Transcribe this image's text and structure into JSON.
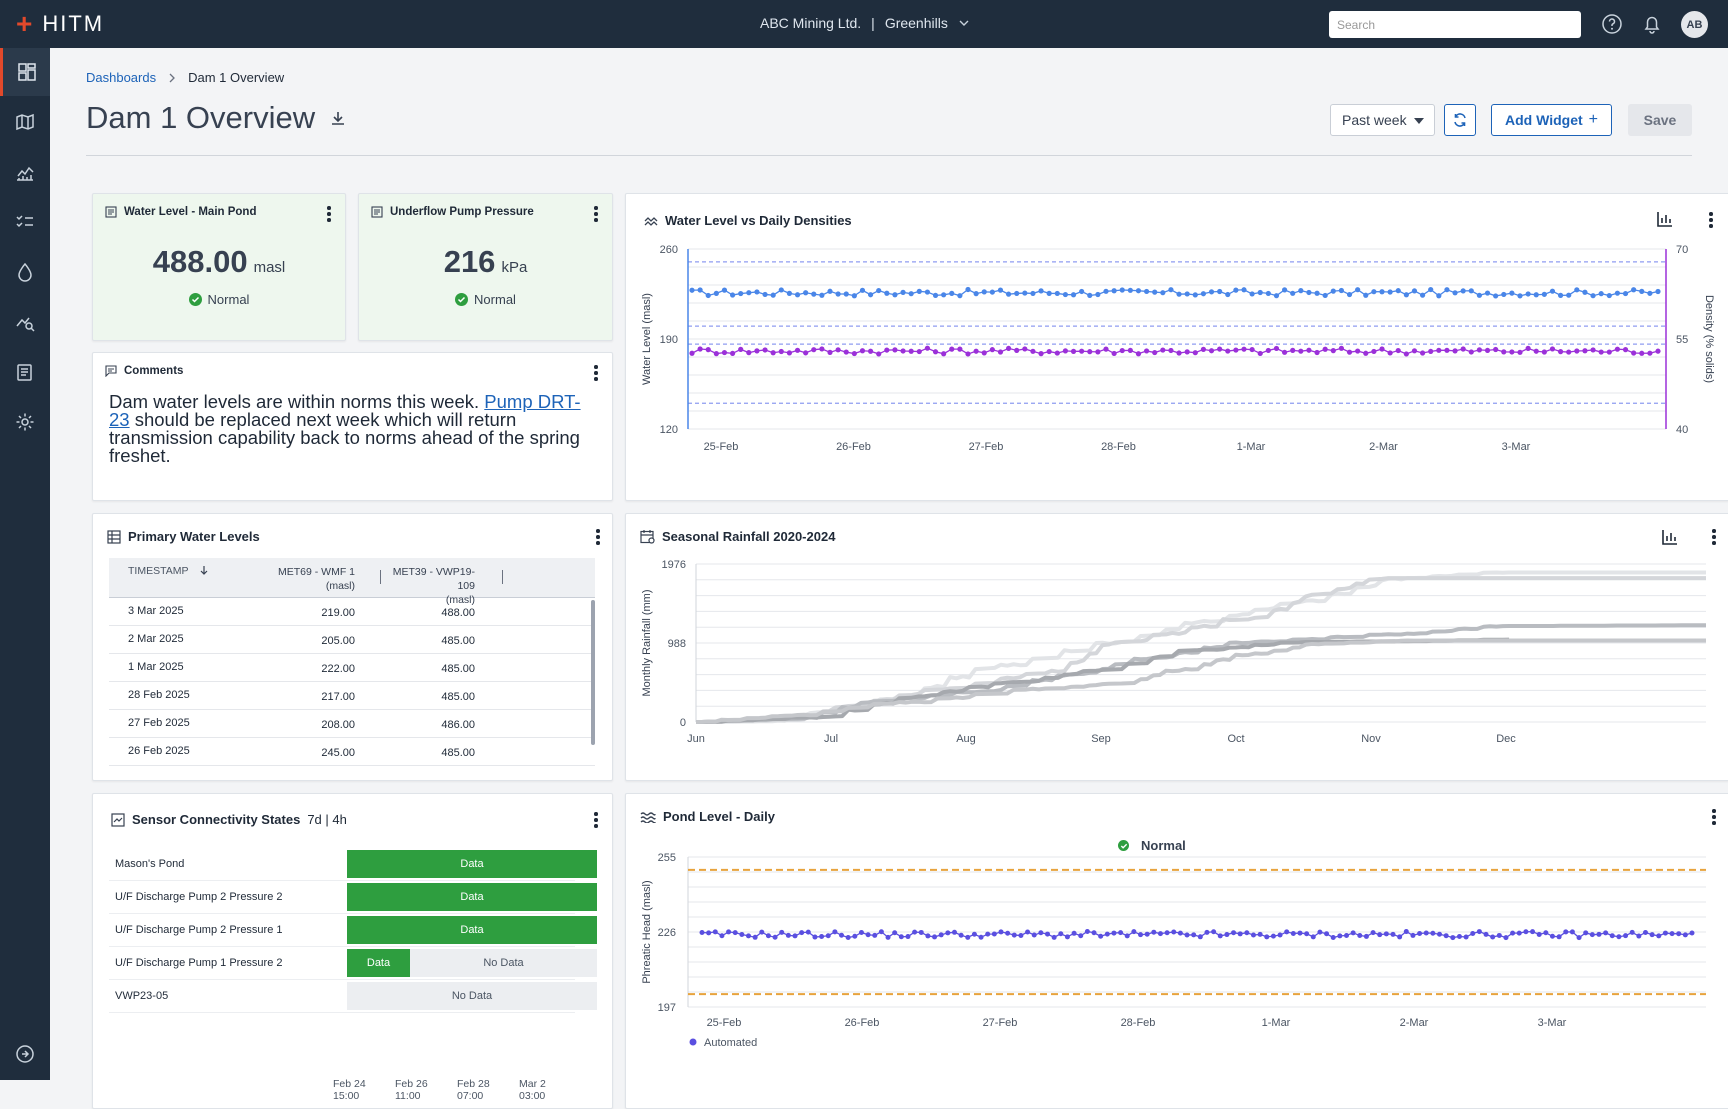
{
  "app": {
    "logo": "HITM",
    "org": "ABC Mining Ltd.",
    "site": "Greenhills",
    "separator": "|"
  },
  "search": {
    "placeholder": "Search"
  },
  "user": {
    "initials": "AB"
  },
  "sidebar": {
    "items": [
      "dashboards",
      "map",
      "analytics",
      "tasks",
      "water",
      "monitoring",
      "reports",
      "settings"
    ],
    "bottom": "expand"
  },
  "breadcrumb": {
    "root": "Dashboards",
    "current": "Dam 1 Overview"
  },
  "page": {
    "title": "Dam 1 Overview"
  },
  "toolbar": {
    "range": "Past week",
    "add_widget": "Add Widget",
    "save": "Save"
  },
  "widgets": {
    "water_level": {
      "title": "Water Level - Main Pond",
      "value": "488.00",
      "unit": "masl",
      "status": "Normal"
    },
    "pump_pressure": {
      "title": "Underflow Pump Pressure",
      "value": "216",
      "unit": "kPa",
      "status": "Normal"
    },
    "comments": {
      "title": "Comments",
      "text_before": "Dam water levels are within norms this week. ",
      "link": "Pump DRT-23",
      "text_after": " should be replaced next week which will return transmission capability back to norms ahead of the spring freshet."
    },
    "primary_levels": {
      "title": "Primary Water Levels",
      "columns": [
        "TIMESTAMP",
        "MET69 - WMF 1\n(masl)",
        "MET39 - VWP19-109\n(masl)"
      ],
      "rows": [
        [
          "3 Mar 2025",
          "219.00",
          "488.00"
        ],
        [
          "2 Mar 2025",
          "205.00",
          "485.00"
        ],
        [
          "1 Mar 2025",
          "222.00",
          "485.00"
        ],
        [
          "28 Feb 2025",
          "217.00",
          "485.00"
        ],
        [
          "27 Feb 2025",
          "208.00",
          "486.00"
        ],
        [
          "26 Feb 2025",
          "245.00",
          "485.00"
        ]
      ]
    },
    "sensor": {
      "title": "Sensor Connectivity States",
      "subtitle": "7d | 4h",
      "rows": [
        {
          "label": "Mason's Pond",
          "data_fraction": 1.0
        },
        {
          "label": "U/F Discharge Pump 2 Pressure 2",
          "data_fraction": 1.0
        },
        {
          "label": "U/F Discharge Pump 2 Pressure 1",
          "data_fraction": 1.0
        },
        {
          "label": "U/F Discharge Pump 1 Pressure 2",
          "data_fraction": 0.25
        },
        {
          "label": "VWP23-05",
          "data_fraction": 0.0
        }
      ],
      "data_label": "Data",
      "nodata_label": "No Data",
      "x_ticks": [
        [
          "Feb 24",
          "15:00"
        ],
        [
          "Feb 26",
          "11:00"
        ],
        [
          "Feb 28",
          "07:00"
        ],
        [
          "Mar 2",
          "03:00"
        ]
      ]
    }
  },
  "chart_data": [
    {
      "type": "line",
      "title": "Water Level vs Daily Densities",
      "ylabel": "Water Level (masl)",
      "y2label": "Density (% solids)",
      "ylim": [
        120,
        260
      ],
      "y2lim": [
        40,
        70
      ],
      "yticks": [
        120,
        190,
        260
      ],
      "y2ticks": [
        40,
        55,
        70
      ],
      "x_ticks": [
        "25-Feb",
        "26-Feb",
        "27-Feb",
        "28-Feb",
        "1-Mar",
        "2-Mar",
        "3-Mar"
      ],
      "thresholds": [
        250,
        200,
        186,
        140
      ],
      "series": [
        {
          "axis": "left",
          "color": "#4a86e8",
          "level": 226,
          "jitter": 2.5
        },
        {
          "axis": "right",
          "color": "#9b30d9",
          "level": 53,
          "jitter": 0.5
        }
      ],
      "grid": true
    },
    {
      "type": "line",
      "title": "Seasonal Rainfall 2020-2024",
      "ylabel": "Monthly Rainfall (mm)",
      "ylim": [
        0,
        1976
      ],
      "yticks": [
        0,
        988,
        1976
      ],
      "x_ticks": [
        "Jun",
        "Jul",
        "Aug",
        "Sep",
        "Oct",
        "Nov",
        "Dec"
      ],
      "series": [
        {
          "color": "#e2e4e7",
          "points": [
            [
              0,
              0
            ],
            [
              0.08,
              10
            ],
            [
              0.12,
              120
            ],
            [
              0.2,
              300
            ],
            [
              0.3,
              700
            ],
            [
              0.42,
              1000
            ],
            [
              0.5,
              1250
            ],
            [
              0.6,
              1500
            ],
            [
              0.7,
              1800
            ],
            [
              0.8,
              1870
            ],
            [
              1,
              1870
            ]
          ]
        },
        {
          "color": "#d4d6da",
          "points": [
            [
              0,
              0
            ],
            [
              0.1,
              30
            ],
            [
              0.15,
              200
            ],
            [
              0.25,
              420
            ],
            [
              0.35,
              620
            ],
            [
              0.42,
              1000
            ],
            [
              0.55,
              1300
            ],
            [
              0.62,
              1600
            ],
            [
              0.68,
              1800
            ],
            [
              1,
              1800
            ]
          ]
        },
        {
          "color": "#b9bcc1",
          "points": [
            [
              0,
              0
            ],
            [
              0.1,
              40
            ],
            [
              0.18,
              260
            ],
            [
              0.28,
              380
            ],
            [
              0.38,
              600
            ],
            [
              0.45,
              800
            ],
            [
              0.55,
              1000
            ],
            [
              0.7,
              1100
            ],
            [
              0.8,
              1200
            ],
            [
              1,
              1210
            ]
          ]
        },
        {
          "color": "#a6a9ae",
          "points": [
            [
              0,
              0
            ],
            [
              0.12,
              60
            ],
            [
              0.22,
              320
            ],
            [
              0.32,
              500
            ],
            [
              0.4,
              650
            ],
            [
              0.5,
              900
            ],
            [
              0.6,
              1000
            ],
            [
              0.7,
              1010
            ],
            [
              0.8,
              1030
            ],
            [
              0.81,
              1030
            ]
          ]
        },
        {
          "color": "#c5c7cb",
          "points": [
            [
              0,
              0
            ],
            [
              0.1,
              80
            ],
            [
              0.2,
              240
            ],
            [
              0.35,
              420
            ],
            [
              0.42,
              480
            ],
            [
              0.48,
              650
            ],
            [
              0.55,
              850
            ],
            [
              0.62,
              980
            ],
            [
              0.72,
              1020
            ],
            [
              1,
              1020
            ]
          ]
        }
      ],
      "grid": true
    },
    {
      "type": "line",
      "title": "Pond Level - Daily",
      "status": "Normal",
      "ylabel": "Phreatic Head (masl)",
      "ylim": [
        197,
        255
      ],
      "yticks": [
        197,
        226,
        255
      ],
      "x_ticks": [
        "25-Feb",
        "26-Feb",
        "27-Feb",
        "28-Feb",
        "1-Mar",
        "2-Mar",
        "3-Mar"
      ],
      "thresholds": [
        250,
        202
      ],
      "series": [
        {
          "name": "Automated",
          "color": "#5a4fe0",
          "level": 225,
          "jitter": 1.2
        }
      ],
      "grid": true
    }
  ]
}
